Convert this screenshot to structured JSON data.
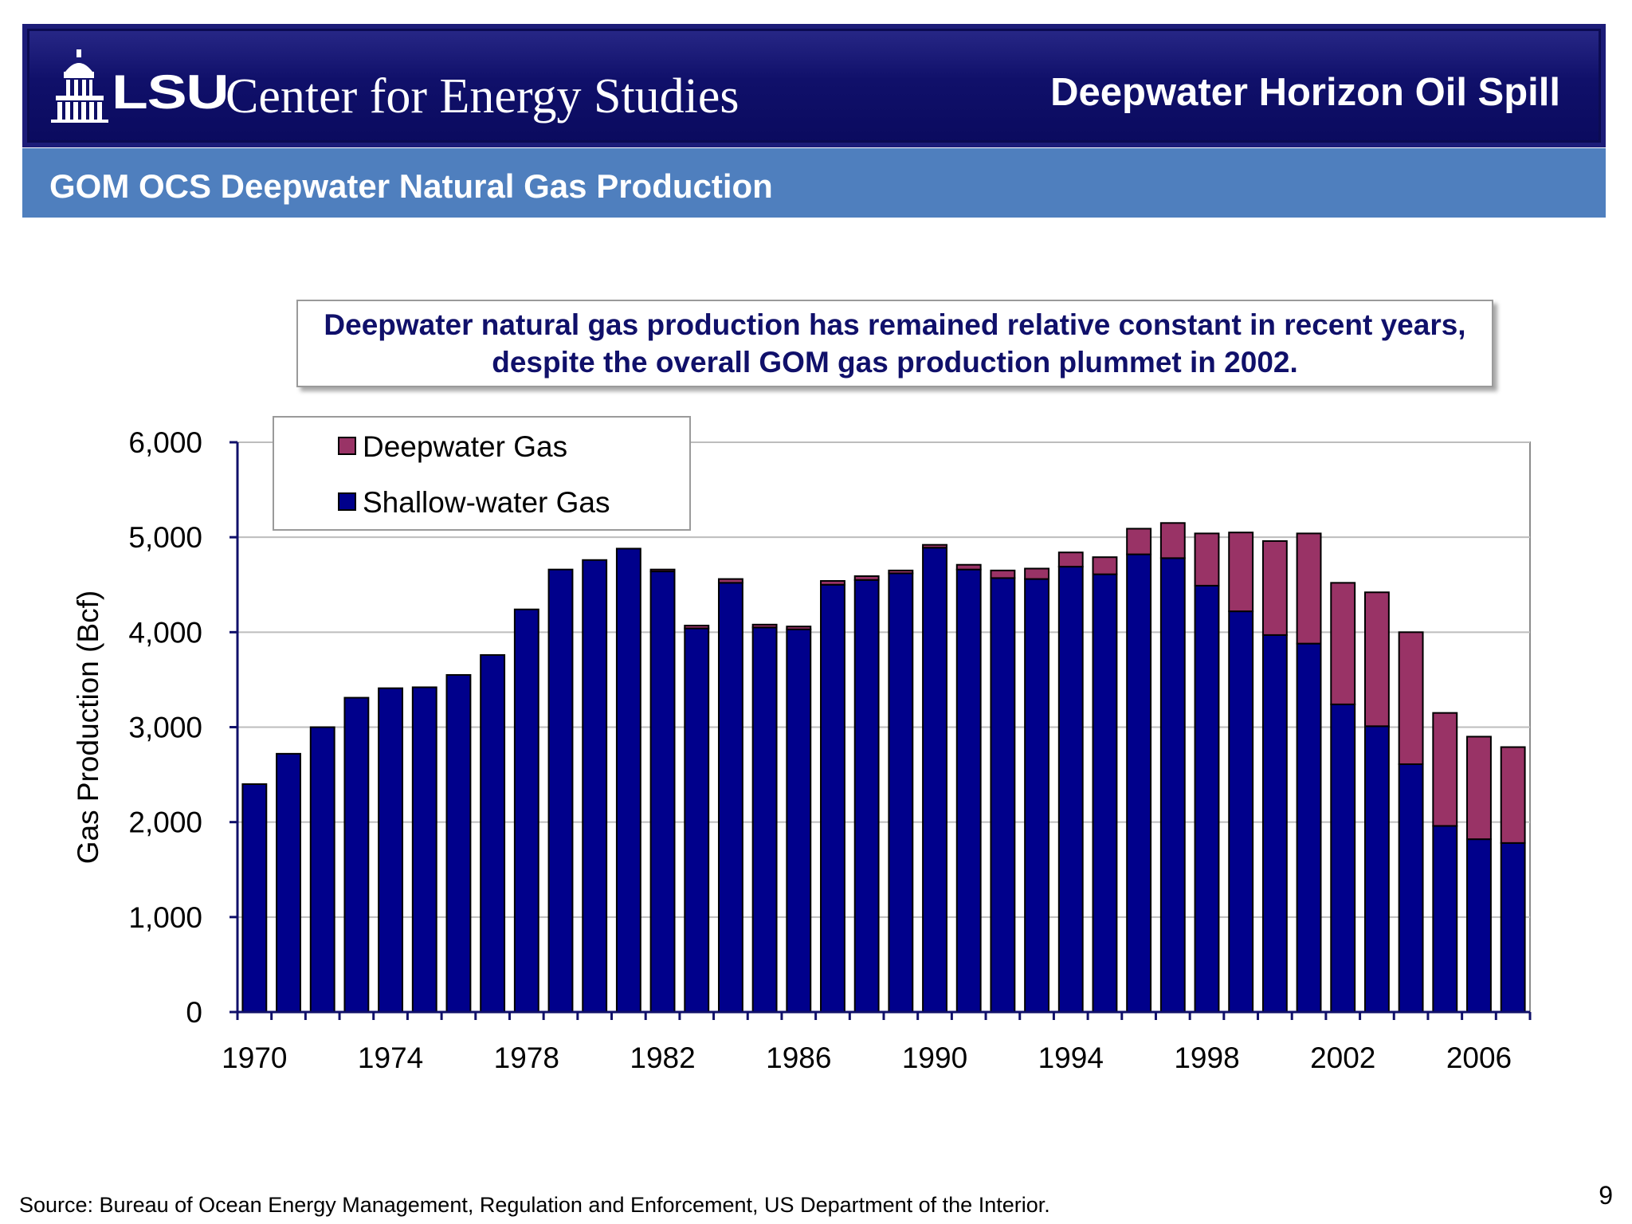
{
  "header": {
    "logo_text": "LSU",
    "center_name": "Center for Energy Studies",
    "right_title": "Deepwater Horizon Oil Spill"
  },
  "slide_title": "GOM OCS Deepwater Natural Gas Production",
  "callout": "Deepwater natural gas production has remained relative constant in recent years, despite the overall GOM gas production plummet in 2002.",
  "source_note": "Source:  Bureau of Ocean Energy Management, Regulation and Enforcement, US Department of the Interior.",
  "page_number": "9",
  "colors": {
    "header_navy": "#10106a",
    "subheader_blue": "#4f7fbe",
    "shallow_bar": "#00008b",
    "deep_bar": "#993366",
    "callout_text": "#10106a"
  },
  "icons": [
    "lsu-memorial-tower-icon"
  ],
  "chart_data": {
    "type": "bar",
    "stacked": true,
    "ylabel": "Gas Production (Bcf)",
    "xlabel": "",
    "ylim": [
      0,
      6000
    ],
    "y_ticks": [
      "0",
      "1,000",
      "2,000",
      "3,000",
      "4,000",
      "5,000",
      "6,000"
    ],
    "y_tick_values": [
      0,
      1000,
      2000,
      3000,
      4000,
      5000,
      6000
    ],
    "x_tick_labels": [
      "1970",
      "1974",
      "1978",
      "1982",
      "1986",
      "1990",
      "1994",
      "1998",
      "2002",
      "2006"
    ],
    "grid": true,
    "legend": "top-left",
    "categories": [
      "1970",
      "1971",
      "1972",
      "1973",
      "1974",
      "1975",
      "1976",
      "1977",
      "1978",
      "1979",
      "1980",
      "1981",
      "1982",
      "1983",
      "1984",
      "1985",
      "1986",
      "1987",
      "1988",
      "1989",
      "1990",
      "1991",
      "1992",
      "1993",
      "1994",
      "1995",
      "1996",
      "1997",
      "1998",
      "1999",
      "2000",
      "2001",
      "2002",
      "2003",
      "2004",
      "2005",
      "2006",
      "2007"
    ],
    "series": [
      {
        "name": "Shallow-water Gas",
        "color": "#00008b",
        "values": [
          2400,
          2720,
          3000,
          3310,
          3410,
          3420,
          3550,
          3760,
          4240,
          4660,
          4760,
          4880,
          4640,
          4040,
          4520,
          4050,
          4030,
          4500,
          4550,
          4620,
          4890,
          4660,
          4570,
          4560,
          4690,
          4610,
          4820,
          4780,
          4490,
          4220,
          3970,
          3880,
          3240,
          3010,
          2610,
          1960,
          1820,
          1780
        ]
      },
      {
        "name": "Deepwater Gas",
        "color": "#993366",
        "values": [
          0,
          0,
          0,
          0,
          0,
          0,
          0,
          0,
          0,
          0,
          0,
          0,
          20,
          30,
          40,
          30,
          30,
          40,
          40,
          30,
          30,
          50,
          80,
          110,
          150,
          180,
          270,
          370,
          550,
          830,
          990,
          1160,
          1280,
          1410,
          1390,
          1190,
          1080,
          1010
        ]
      }
    ]
  }
}
